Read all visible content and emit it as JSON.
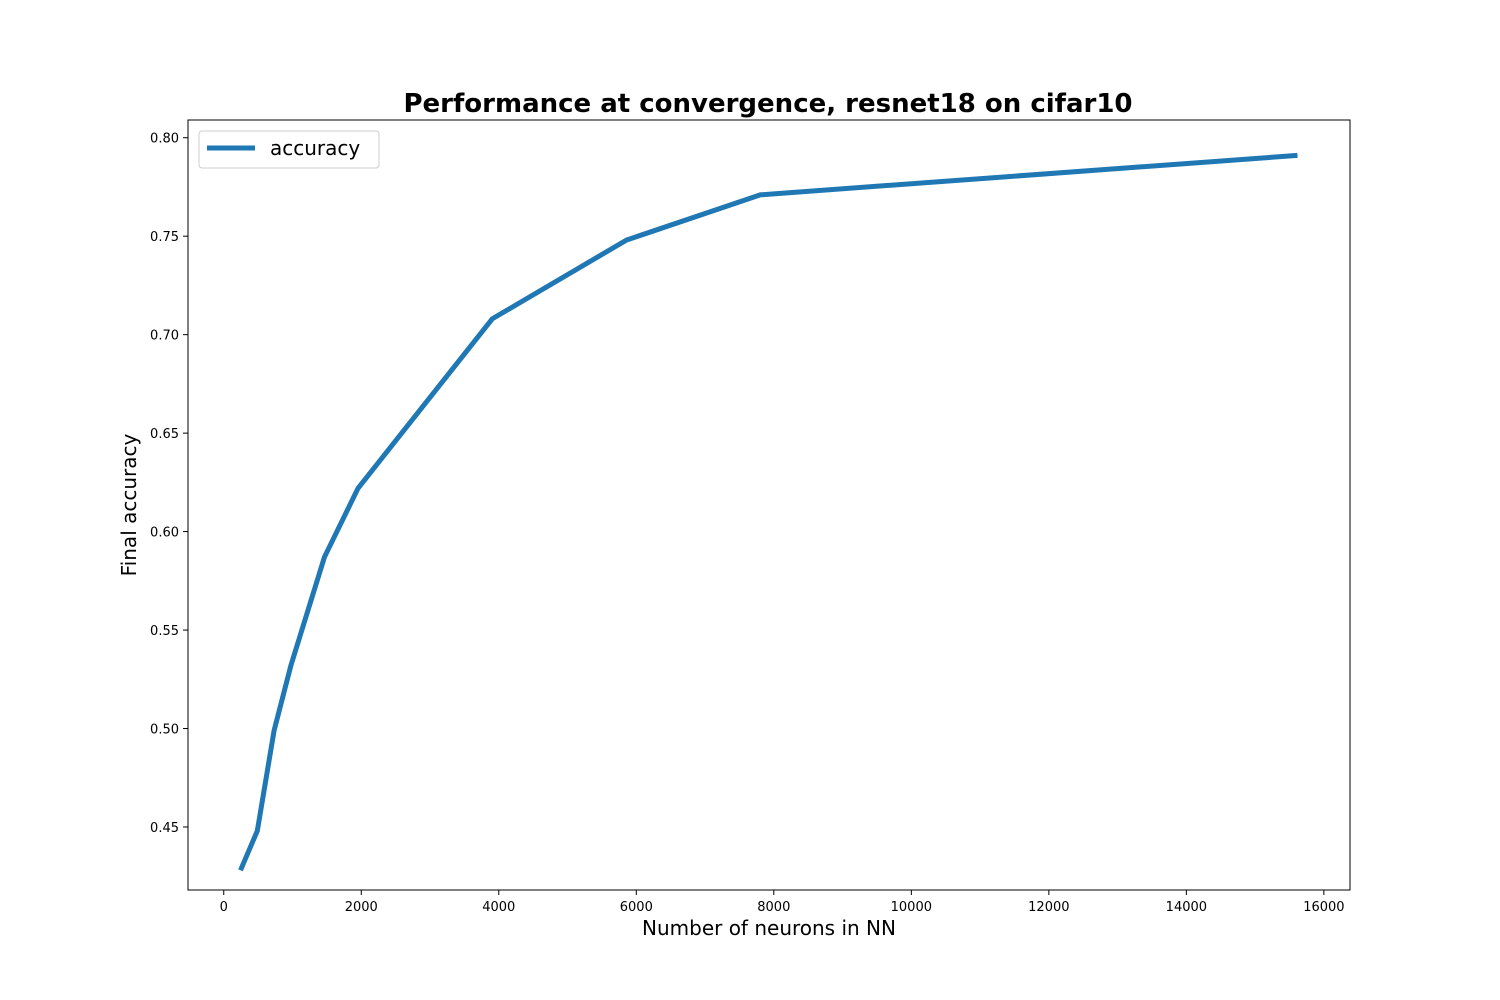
{
  "chart_data": {
    "type": "line",
    "title": "Performance at convergence, resnet18 on cifar10",
    "xlabel": "Number of neurons in NN",
    "ylabel": "Final accuracy",
    "xlim": [
      -520,
      16380
    ],
    "ylim": [
      0.418,
      0.809
    ],
    "xticks": [
      0,
      2000,
      4000,
      6000,
      8000,
      10000,
      12000,
      14000,
      16000
    ],
    "xtick_labels": [
      "0",
      "2000",
      "4000",
      "6000",
      "8000",
      "10000",
      "12000",
      "14000",
      "16000"
    ],
    "yticks": [
      0.45,
      0.5,
      0.55,
      0.6,
      0.65,
      0.7,
      0.75,
      0.8
    ],
    "ytick_labels": [
      "0.45",
      "0.50",
      "0.55",
      "0.60",
      "0.65",
      "0.70",
      "0.75",
      "0.80"
    ],
    "grid": false,
    "legend_position": "top-left",
    "series": [
      {
        "name": "accuracy",
        "color": "#1f77b4",
        "x": [
          244,
          488,
          732,
          976,
          1464,
          1952,
          3904,
          5856,
          7808,
          15616
        ],
        "y": [
          0.428,
          0.448,
          0.499,
          0.532,
          0.587,
          0.622,
          0.708,
          0.748,
          0.771,
          0.791
        ]
      }
    ]
  }
}
